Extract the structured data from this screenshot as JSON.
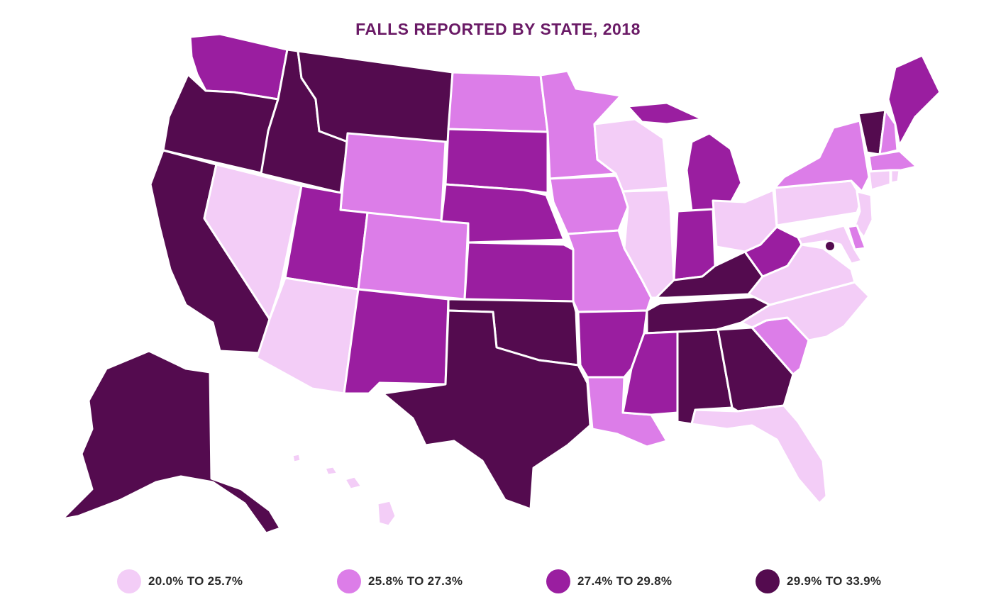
{
  "title": "FALLS REPORTED BY STATE, 2018",
  "colors": {
    "title": "#6a1a66",
    "bin1": "#f3cdf7",
    "bin2": "#dc7de8",
    "bin3": "#9a1ea0",
    "bin4": "#540b4f",
    "border": "#ffffff"
  },
  "legend": [
    {
      "label": "20.0% TO 25.7%",
      "color": "#f3cdf7"
    },
    {
      "label": "25.8% TO 27.3%",
      "color": "#dc7de8"
    },
    {
      "label": "27.4% TO 29.8%",
      "color": "#9a1ea0"
    },
    {
      "label": "29.9% TO 33.9%",
      "color": "#540b4f"
    }
  ],
  "states": [
    {
      "state": "Washington",
      "bin": 3
    },
    {
      "state": "Oregon",
      "bin": 4
    },
    {
      "state": "California",
      "bin": 4
    },
    {
      "state": "Idaho",
      "bin": 4
    },
    {
      "state": "Nevada",
      "bin": 1
    },
    {
      "state": "Montana",
      "bin": 4
    },
    {
      "state": "Wyoming",
      "bin": 2
    },
    {
      "state": "Utah",
      "bin": 3
    },
    {
      "state": "Arizona",
      "bin": 1
    },
    {
      "state": "Colorado",
      "bin": 2
    },
    {
      "state": "New Mexico",
      "bin": 3
    },
    {
      "state": "North Dakota",
      "bin": 2
    },
    {
      "state": "South Dakota",
      "bin": 3
    },
    {
      "state": "Nebraska",
      "bin": 3
    },
    {
      "state": "Kansas",
      "bin": 3
    },
    {
      "state": "Oklahoma",
      "bin": 4
    },
    {
      "state": "Texas",
      "bin": 4
    },
    {
      "state": "Minnesota",
      "bin": 2
    },
    {
      "state": "Iowa",
      "bin": 2
    },
    {
      "state": "Missouri",
      "bin": 2
    },
    {
      "state": "Arkansas",
      "bin": 3
    },
    {
      "state": "Louisiana",
      "bin": 2
    },
    {
      "state": "Wisconsin",
      "bin": 1
    },
    {
      "state": "Illinois",
      "bin": 1
    },
    {
      "state": "Michigan",
      "bin": 3
    },
    {
      "state": "Indiana",
      "bin": 3
    },
    {
      "state": "Ohio",
      "bin": 1
    },
    {
      "state": "Kentucky",
      "bin": 4
    },
    {
      "state": "Tennessee",
      "bin": 4
    },
    {
      "state": "Mississippi",
      "bin": 3
    },
    {
      "state": "Alabama",
      "bin": 4
    },
    {
      "state": "Georgia",
      "bin": 4
    },
    {
      "state": "Florida",
      "bin": 1
    },
    {
      "state": "South Carolina",
      "bin": 2
    },
    {
      "state": "North Carolina",
      "bin": 1
    },
    {
      "state": "Virginia",
      "bin": 1
    },
    {
      "state": "West Virginia",
      "bin": 3
    },
    {
      "state": "Pennsylvania",
      "bin": 1
    },
    {
      "state": "New York",
      "bin": 2
    },
    {
      "state": "Vermont",
      "bin": 4
    },
    {
      "state": "New Hampshire",
      "bin": 2
    },
    {
      "state": "Maine",
      "bin": 3
    },
    {
      "state": "Massachusetts",
      "bin": 2
    },
    {
      "state": "Connecticut",
      "bin": 1
    },
    {
      "state": "Rhode Island",
      "bin": 1
    },
    {
      "state": "New Jersey",
      "bin": 1
    },
    {
      "state": "Delaware",
      "bin": 2
    },
    {
      "state": "Maryland",
      "bin": 1
    },
    {
      "state": "District of Columbia",
      "bin": 4
    },
    {
      "state": "Alaska",
      "bin": 4
    },
    {
      "state": "Hawaii",
      "bin": 1
    }
  ]
}
